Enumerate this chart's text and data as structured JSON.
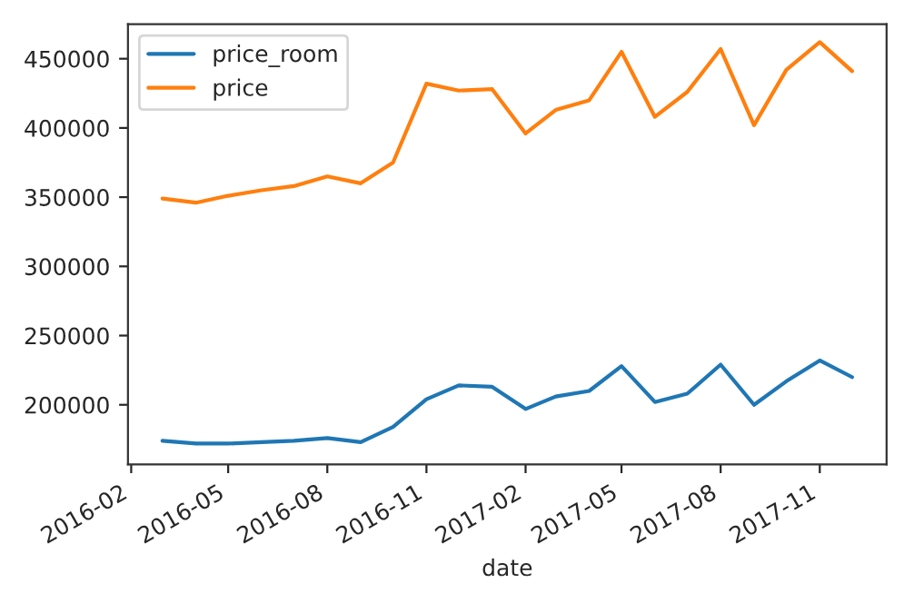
{
  "chart_data": {
    "type": "line",
    "xlabel": "date",
    "x": [
      "2016-03-01",
      "2016-04-01",
      "2016-05-01",
      "2016-06-01",
      "2016-07-01",
      "2016-08-01",
      "2016-09-01",
      "2016-10-01",
      "2016-11-01",
      "2016-12-01",
      "2017-01-01",
      "2017-02-01",
      "2017-03-01",
      "2017-04-01",
      "2017-05-01",
      "2017-06-01",
      "2017-07-01",
      "2017-08-01",
      "2017-09-01",
      "2017-10-01",
      "2017-11-01",
      "2017-12-01"
    ],
    "series": [
      {
        "name": "price_room",
        "color": "#1f77b4",
        "values": [
          174000,
          172000,
          172000,
          173000,
          174000,
          176000,
          173000,
          184000,
          204000,
          214000,
          213000,
          197000,
          206000,
          210000,
          228000,
          202000,
          208000,
          229000,
          200000,
          217000,
          232000,
          220000
        ]
      },
      {
        "name": "price",
        "color": "#ff7f0e",
        "values": [
          349000,
          346000,
          351000,
          355000,
          358000,
          365000,
          360000,
          375000,
          432000,
          427000,
          428000,
          396000,
          413000,
          420000,
          455000,
          408000,
          426000,
          457000,
          402000,
          442000,
          462000,
          441000
        ]
      }
    ],
    "xlim": [
      "2016-01-29",
      "2018-01-02"
    ],
    "xticks": [
      "2016-02",
      "2016-05",
      "2016-08",
      "2016-11",
      "2017-02",
      "2017-05",
      "2017-08",
      "2017-11"
    ],
    "ylim": [
      157000,
      475000
    ],
    "yticks": [
      200000,
      250000,
      300000,
      350000,
      400000,
      450000
    ],
    "legend": "top left",
    "grid": false
  }
}
